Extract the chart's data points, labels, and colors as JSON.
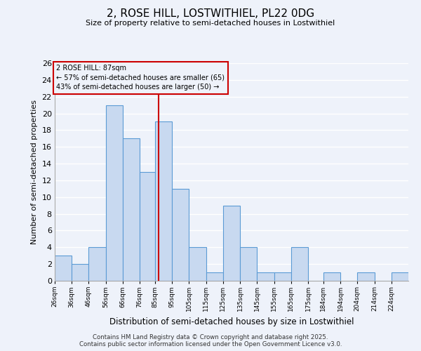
{
  "title": "2, ROSE HILL, LOSTWITHIEL, PL22 0DG",
  "subtitle": "Size of property relative to semi-detached houses in Lostwithiel",
  "xlabel": "Distribution of semi-detached houses by size in Lostwithiel",
  "ylabel": "Number of semi-detached properties",
  "bin_labels": [
    "26sqm",
    "36sqm",
    "46sqm",
    "56sqm",
    "66sqm",
    "76sqm",
    "85sqm",
    "95sqm",
    "105sqm",
    "115sqm",
    "125sqm",
    "135sqm",
    "145sqm",
    "155sqm",
    "165sqm",
    "175sqm",
    "184sqm",
    "194sqm",
    "204sqm",
    "214sqm",
    "224sqm"
  ],
  "bin_edges": [
    26,
    36,
    46,
    56,
    66,
    76,
    85,
    95,
    105,
    115,
    125,
    135,
    145,
    155,
    165,
    175,
    184,
    194,
    204,
    214,
    224,
    234
  ],
  "counts": [
    3,
    2,
    4,
    21,
    17,
    13,
    19,
    11,
    4,
    1,
    9,
    4,
    1,
    1,
    4,
    0,
    1,
    0,
    1,
    0,
    1
  ],
  "property_size": 87,
  "bar_color": "#c8d9f0",
  "bar_edge_color": "#5b9bd5",
  "vline_color": "#cc0000",
  "annotation_box_edge": "#cc0000",
  "annotation_line1": "2 ROSE HILL: 87sqm",
  "annotation_line2": "← 57% of semi-detached houses are smaller (65)",
  "annotation_line3": "43% of semi-detached houses are larger (50) →",
  "footer_line1": "Contains HM Land Registry data © Crown copyright and database right 2025.",
  "footer_line2": "Contains public sector information licensed under the Open Government Licence v3.0.",
  "ylim": [
    0,
    26
  ],
  "yticks": [
    0,
    2,
    4,
    6,
    8,
    10,
    12,
    14,
    16,
    18,
    20,
    22,
    24,
    26
  ],
  "bg_color": "#eef2fa",
  "grid_color": "#ffffff"
}
